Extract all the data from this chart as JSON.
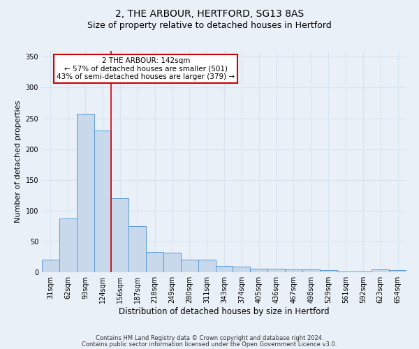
{
  "title1": "2, THE ARBOUR, HERTFORD, SG13 8AS",
  "title2": "Size of property relative to detached houses in Hertford",
  "xlabel": "Distribution of detached houses by size in Hertford",
  "ylabel": "Number of detached properties",
  "categories": [
    "31sqm",
    "62sqm",
    "93sqm",
    "124sqm",
    "156sqm",
    "187sqm",
    "218sqm",
    "249sqm",
    "280sqm",
    "311sqm",
    "343sqm",
    "374sqm",
    "405sqm",
    "436sqm",
    "467sqm",
    "498sqm",
    "529sqm",
    "561sqm",
    "592sqm",
    "623sqm",
    "654sqm"
  ],
  "values": [
    20,
    87,
    257,
    230,
    120,
    75,
    33,
    32,
    20,
    20,
    10,
    9,
    6,
    6,
    5,
    4,
    3,
    1,
    1,
    4,
    3
  ],
  "bar_color": "#c9d9ec",
  "bar_edge_color": "#5b9bd5",
  "background_color": "#eaf0f8",
  "grid_color": "#d8e4f0",
  "vline_x_index": 3.5,
  "vline_color": "#cc0000",
  "annotation_text": "2 THE ARBOUR: 142sqm\n← 57% of detached houses are smaller (501)\n43% of semi-detached houses are larger (379) →",
  "annotation_box_color": "#ffffff",
  "annotation_box_edge": "#cc0000",
  "ylim": [
    0,
    360
  ],
  "yticks": [
    0,
    50,
    100,
    150,
    200,
    250,
    300,
    350
  ],
  "footer1": "Contains HM Land Registry data © Crown copyright and database right 2024.",
  "footer2": "Contains public sector information licensed under the Open Government Licence v3.0.",
  "title1_fontsize": 10,
  "title2_fontsize": 9,
  "xlabel_fontsize": 8.5,
  "ylabel_fontsize": 8,
  "tick_fontsize": 7,
  "footer_fontsize": 6,
  "ann_fontsize": 7.5
}
